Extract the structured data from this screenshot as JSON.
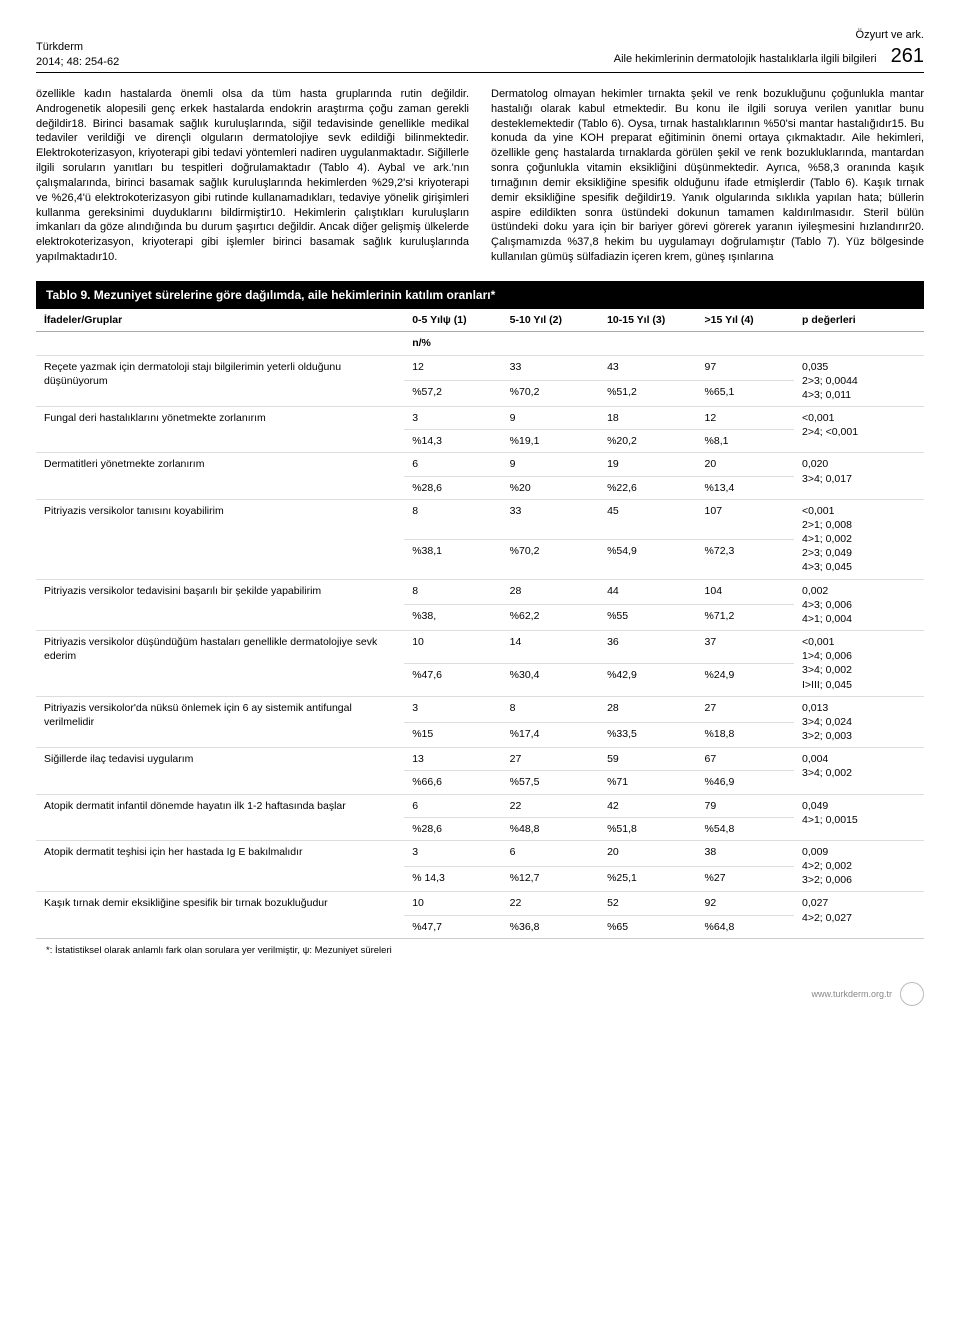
{
  "header": {
    "journal": "Türkderm",
    "issue": "2014; 48: 254-62",
    "authors": "Özyurt ve ark.",
    "running_title": "Aile hekimlerinin dermatolojik hastalıklarla ilgili bilgileri",
    "page_number": "261"
  },
  "body": {
    "left": "özellikle kadın hastalarda önemli olsa da tüm hasta gruplarında rutin değildir. Androgenetik alopesili genç erkek hastalarda endokrin araştırma çoğu zaman gerekli değildir18. Birinci basamak sağlık kuruluşlarında, siğil tedavisinde genellikle medikal tedaviler verildiği ve dirençli olguların dermatolojiye sevk edildiği bilinmektedir. Elektrokoterizasyon, kriyoterapi gibi tedavi yöntemleri nadiren uygulanmaktadır. Siğillerle ilgili soruların yanıtları bu tespitleri doğrulamaktadır (Tablo 4). Aybal ve ark.'nın çalışmalarında, birinci basamak sağlık kuruluşlarında hekimlerden %29,2'si kriyoterapi ve %26,4'ü elektrokoterizasyon gibi rutinde kullanamadıkları, tedaviye yönelik girişimleri kullanma gereksinimi duyduklarını bildirmiştir10. Hekimlerin çalıştıkları kuruluşların imkanları da göze alındığında bu durum şaşırtıcı değildir. Ancak diğer gelişmiş ülkelerde elektrokoterizasyon, kriyoterapi gibi işlemler birinci basamak sağlık kuruluşlarında yapılmaktadır10.",
    "right": "Dermatolog olmayan hekimler tırnakta şekil ve renk bozukluğunu çoğunlukla mantar hastalığı olarak kabul etmektedir. Bu konu ile ilgili soruya verilen yanıtlar bunu desteklemektedir (Tablo 6). Oysa, tırnak hastalıklarının %50'si mantar hastalığıdır15. Bu konuda da yine KOH preparat eğitiminin önemi ortaya çıkmaktadır. Aile hekimleri, özellikle genç hastalarda tırnaklarda görülen şekil ve renk bozukluklarında, mantardan sonra çoğunlukla vitamin eksikliğini düşünmektedir. Ayrıca, %58,3 oranında kaşık tırnağının demir eksikliğine spesifik olduğunu ifade etmişlerdir (Tablo 6). Kaşık tırnak demir eksikliğine spesifik değildir19. Yanık olgularında sıklıkla yapılan hata; büllerin aspire edildikten sonra üstündeki dokunun tamamen kaldırılmasıdır. Steril bülün üstündeki doku yara için bir bariyer görevi görerek yaranın iyileşmesini hızlandırır20. Çalışmamızda %37,8 hekim bu uygulamayı doğrulamıştır (Tablo 7). Yüz bölgesinde kullanılan gümüş sülfadiazin içeren krem, güneş ışınlarına"
  },
  "table": {
    "title": "Tablo 9. Mezuniyet sürelerine göre dağılımda, aile hekimlerinin katılım oranları*",
    "col_headers": [
      "İfadeler/Gruplar",
      "0-5 Yılψ (1)",
      "5-10 Yıl (2)",
      "10-15 Yıl (3)",
      ">15 Yıl (4)",
      "p değerleri"
    ],
    "sub_header": "n/%",
    "rows": [
      {
        "statement": "Reçete yazmak için dermatoloji stajı bilgilerimin yeterli olduğunu düşünüyorum",
        "cells": [
          [
            "12",
            "%57,2"
          ],
          [
            "33",
            "%70,2"
          ],
          [
            "43",
            "%51,2"
          ],
          [
            "97",
            "%65,1"
          ]
        ],
        "p": "0,035\n2>3; 0,0044\n4>3; 0,011"
      },
      {
        "statement": "Fungal deri hastalıklarını yönetmekte zorlanırım",
        "cells": [
          [
            "3",
            "%14,3"
          ],
          [
            "9",
            "%19,1"
          ],
          [
            "18",
            "%20,2"
          ],
          [
            "12",
            "%8,1"
          ]
        ],
        "p": "<0,001\n2>4; <0,001"
      },
      {
        "statement": "Dermatitleri yönetmekte zorlanırım",
        "cells": [
          [
            "6",
            "%28,6"
          ],
          [
            "9",
            "%20"
          ],
          [
            "19",
            "%22,6"
          ],
          [
            "20",
            "%13,4"
          ]
        ],
        "p": "0,020\n3>4; 0,017"
      },
      {
        "statement": "Pitriyazis versikolor tanısını koyabilirim",
        "cells": [
          [
            "8",
            "%38,1"
          ],
          [
            "33",
            "%70,2"
          ],
          [
            "45",
            "%54,9"
          ],
          [
            "107",
            "%72,3"
          ]
        ],
        "p": "<0,001\n2>1; 0,008\n4>1; 0,002\n2>3; 0,049\n4>3; 0,045"
      },
      {
        "statement": "Pitriyazis versikolor tedavisini başarılı bir şekilde yapabilirim",
        "cells": [
          [
            "8",
            "%38,"
          ],
          [
            "28",
            "%62,2"
          ],
          [
            "44",
            "%55"
          ],
          [
            "104",
            "%71,2"
          ]
        ],
        "p": "0,002\n4>3; 0,006\n4>1; 0,004"
      },
      {
        "statement": "Pitriyazis versikolor düşündüğüm hastaları genellikle dermatolojiye sevk ederim",
        "cells": [
          [
            "10",
            "%47,6"
          ],
          [
            "14",
            "%30,4"
          ],
          [
            "36",
            "%42,9"
          ],
          [
            "37",
            "%24,9"
          ]
        ],
        "p": "<0,001\n1>4; 0,006\n3>4; 0,002\nI>III; 0,045"
      },
      {
        "statement": "Pitriyazis versikolor'da nüksü önlemek için 6 ay sistemik antifungal verilmelidir",
        "cells": [
          [
            "3",
            "%15"
          ],
          [
            "8",
            "%17,4"
          ],
          [
            "28",
            "%33,5"
          ],
          [
            "27",
            "%18,8"
          ]
        ],
        "p": "0,013\n3>4; 0,024\n3>2; 0,003"
      },
      {
        "statement": "Siğillerde ilaç tedavisi uygularım",
        "cells": [
          [
            "13",
            "%66,6"
          ],
          [
            "27",
            "%57,5"
          ],
          [
            "59",
            "%71"
          ],
          [
            "67",
            "%46,9"
          ]
        ],
        "p": "0,004\n3>4; 0,002"
      },
      {
        "statement": "Atopik dermatit infantil dönemde hayatın ilk 1-2 haftasında başlar",
        "cells": [
          [
            "6",
            "%28,6"
          ],
          [
            "22",
            "%48,8"
          ],
          [
            "42",
            "%51,8"
          ],
          [
            "79",
            "%54,8"
          ]
        ],
        "p": "0,049\n4>1; 0,0015"
      },
      {
        "statement": "Atopik dermatit teşhisi için her hastada Ig E bakılmalıdır",
        "cells": [
          [
            "3",
            "% 14,3"
          ],
          [
            "6",
            "%12,7"
          ],
          [
            "20",
            "%25,1"
          ],
          [
            "38",
            "%27"
          ]
        ],
        "p": "0,009\n4>2; 0,002\n3>2; 0,006"
      },
      {
        "statement": "Kaşık tırnak demir eksikliğine spesifik bir tırnak bozukluğudur",
        "cells": [
          [
            "10",
            "%47,7"
          ],
          [
            "22",
            "%36,8"
          ],
          [
            "52",
            "%65"
          ],
          [
            "92",
            "%64,8"
          ]
        ],
        "p": "0,027\n4>2; 0,027"
      }
    ],
    "footnote": "*: İstatistiksel olarak anlamlı fark olan sorulara yer verilmiştir, ψ: Mezuniyet süreleri"
  },
  "footer": {
    "url": "www.turkderm.org.tr"
  }
}
